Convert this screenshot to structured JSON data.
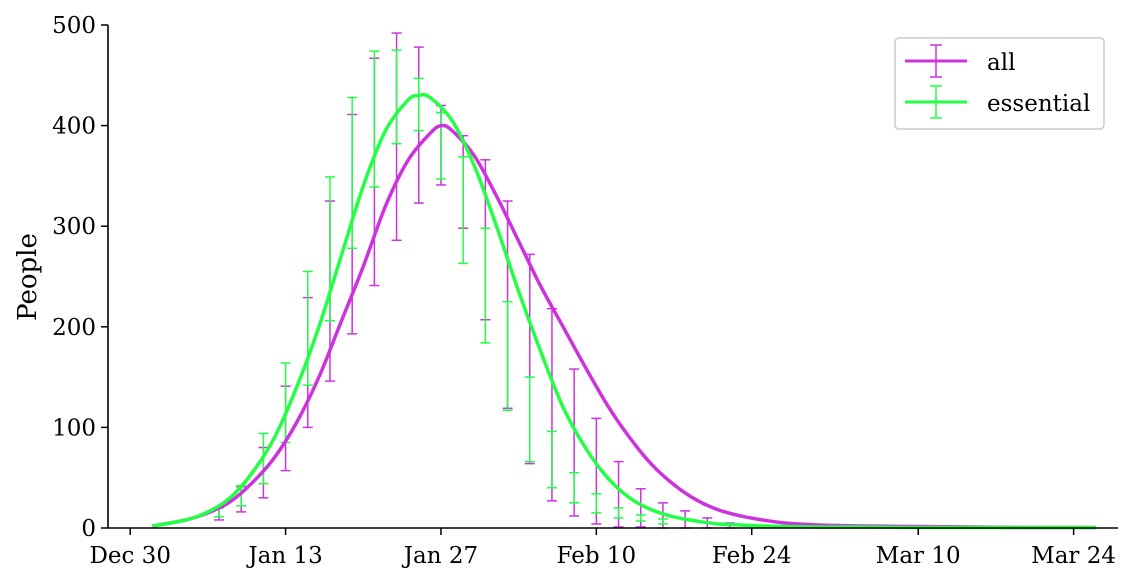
{
  "chart_data": {
    "type": "line",
    "title": "",
    "xlabel": "",
    "ylabel": "People",
    "x_type": "date",
    "year_of_dates": 2020,
    "xlim": [
      "2019-12-28",
      "2020-03-28"
    ],
    "ylim": [
      0,
      500
    ],
    "xticks": [
      {
        "date": "2019-12-30",
        "label": "Dec 30"
      },
      {
        "date": "2020-01-13",
        "label": "Jan 13"
      },
      {
        "date": "2020-01-27",
        "label": "Jan 27"
      },
      {
        "date": "2020-02-10",
        "label": "Feb 10"
      },
      {
        "date": "2020-02-24",
        "label": "Feb 24"
      },
      {
        "date": "2020-03-10",
        "label": "Mar 10"
      },
      {
        "date": "2020-03-24",
        "label": "Mar 24"
      }
    ],
    "yticks": [
      0,
      100,
      200,
      300,
      400,
      500
    ],
    "grid": false,
    "legend_position": "top-right",
    "series": [
      {
        "name": "all",
        "color": "#cc33dd",
        "x": [
          "2020-01-01",
          "2020-01-04",
          "2020-01-06",
          "2020-01-08",
          "2020-01-10",
          "2020-01-12",
          "2020-01-14",
          "2020-01-16",
          "2020-01-18",
          "2020-01-20",
          "2020-01-22",
          "2020-01-24",
          "2020-01-26",
          "2020-01-27",
          "2020-01-28",
          "2020-01-30",
          "2020-02-01",
          "2020-02-03",
          "2020-02-05",
          "2020-02-07",
          "2020-02-09",
          "2020-02-11",
          "2020-02-13",
          "2020-02-15",
          "2020-02-17",
          "2020-02-19",
          "2020-02-21",
          "2020-02-23",
          "2020-02-25",
          "2020-02-27",
          "2020-03-01",
          "2020-03-05",
          "2020-03-10",
          "2020-03-15",
          "2020-03-20",
          "2020-03-26"
        ],
        "y": [
          2,
          8,
          15,
          26,
          45,
          70,
          105,
          150,
          205,
          260,
          320,
          365,
          392,
          400,
          395,
          370,
          330,
          285,
          240,
          200,
          160,
          122,
          90,
          63,
          43,
          28,
          18,
          12,
          8,
          5,
          3,
          2,
          1.5,
          1,
          0.5,
          0.5
        ],
        "errorbars": [
          {
            "x": "2020-01-07",
            "low": 8,
            "high": 20
          },
          {
            "x": "2020-01-09",
            "low": 16,
            "high": 41
          },
          {
            "x": "2020-01-11",
            "low": 30,
            "high": 80
          },
          {
            "x": "2020-01-13",
            "low": 57,
            "high": 141
          },
          {
            "x": "2020-01-15",
            "low": 100,
            "high": 229
          },
          {
            "x": "2020-01-17",
            "low": 146,
            "high": 325
          },
          {
            "x": "2020-01-19",
            "low": 193,
            "high": 411
          },
          {
            "x": "2020-01-21",
            "low": 241,
            "high": 467
          },
          {
            "x": "2020-01-23",
            "low": 286,
            "high": 492
          },
          {
            "x": "2020-01-25",
            "low": 323,
            "high": 478
          },
          {
            "x": "2020-01-27",
            "low": 341,
            "high": 420
          },
          {
            "x": "2020-01-29",
            "low": 298,
            "high": 390
          },
          {
            "x": "2020-01-31",
            "low": 207,
            "high": 366
          },
          {
            "x": "2020-02-02",
            "low": 119,
            "high": 325
          },
          {
            "x": "2020-02-04",
            "low": 64,
            "high": 272
          },
          {
            "x": "2020-02-06",
            "low": 27,
            "high": 218
          },
          {
            "x": "2020-02-08",
            "low": 12,
            "high": 158
          },
          {
            "x": "2020-02-10",
            "low": 4,
            "high": 109
          },
          {
            "x": "2020-02-12",
            "low": 1,
            "high": 66
          },
          {
            "x": "2020-02-14",
            "low": 1,
            "high": 39
          },
          {
            "x": "2020-02-16",
            "low": 0,
            "high": 25
          },
          {
            "x": "2020-02-18",
            "low": 0,
            "high": 17
          },
          {
            "x": "2020-02-20",
            "low": 0,
            "high": 10
          },
          {
            "x": "2020-02-22",
            "low": 0,
            "high": 5
          }
        ]
      },
      {
        "name": "essential",
        "color": "#22ff44",
        "x": [
          "2020-01-01",
          "2020-01-04",
          "2020-01-06",
          "2020-01-08",
          "2020-01-10",
          "2020-01-12",
          "2020-01-14",
          "2020-01-16",
          "2020-01-18",
          "2020-01-20",
          "2020-01-22",
          "2020-01-24",
          "2020-01-25",
          "2020-01-26",
          "2020-01-28",
          "2020-01-30",
          "2020-02-01",
          "2020-02-03",
          "2020-02-05",
          "2020-02-07",
          "2020-02-09",
          "2020-02-11",
          "2020-02-13",
          "2020-02-15",
          "2020-02-17",
          "2020-02-19",
          "2020-02-21",
          "2020-02-23",
          "2020-02-25",
          "2020-02-27",
          "2020-03-01",
          "2020-03-05",
          "2020-03-10",
          "2020-03-15",
          "2020-03-20",
          "2020-03-26"
        ],
        "y": [
          2,
          8,
          16,
          30,
          55,
          90,
          140,
          200,
          270,
          340,
          395,
          425,
          430,
          428,
          405,
          360,
          300,
          235,
          175,
          120,
          80,
          50,
          30,
          18,
          11,
          7,
          4,
          3,
          2,
          1.5,
          1,
          1,
          0.5,
          0.5,
          0.5,
          0.5
        ],
        "errorbars": [
          {
            "x": "2020-01-07",
            "low": 11,
            "high": 20
          },
          {
            "x": "2020-01-09",
            "low": 22,
            "high": 42
          },
          {
            "x": "2020-01-11",
            "low": 44,
            "high": 94
          },
          {
            "x": "2020-01-13",
            "low": 85,
            "high": 164
          },
          {
            "x": "2020-01-15",
            "low": 142,
            "high": 255
          },
          {
            "x": "2020-01-17",
            "low": 206,
            "high": 349
          },
          {
            "x": "2020-01-19",
            "low": 278,
            "high": 428
          },
          {
            "x": "2020-01-21",
            "low": 339,
            "high": 474
          },
          {
            "x": "2020-01-23",
            "low": 382,
            "high": 475
          },
          {
            "x": "2020-01-25",
            "low": 395,
            "high": 447
          },
          {
            "x": "2020-01-27",
            "low": 347,
            "high": 413
          },
          {
            "x": "2020-01-29",
            "low": 263,
            "high": 369
          },
          {
            "x": "2020-01-31",
            "low": 184,
            "high": 298
          },
          {
            "x": "2020-02-02",
            "low": 117,
            "high": 225
          },
          {
            "x": "2020-02-04",
            "low": 66,
            "high": 150
          },
          {
            "x": "2020-02-06",
            "low": 40,
            "high": 96
          },
          {
            "x": "2020-02-08",
            "low": 25,
            "high": 55
          },
          {
            "x": "2020-02-10",
            "low": 15,
            "high": 34
          },
          {
            "x": "2020-02-12",
            "low": 10,
            "high": 20
          },
          {
            "x": "2020-02-14",
            "low": 7,
            "high": 13
          },
          {
            "x": "2020-02-16",
            "low": 4,
            "high": 9
          }
        ]
      }
    ]
  }
}
